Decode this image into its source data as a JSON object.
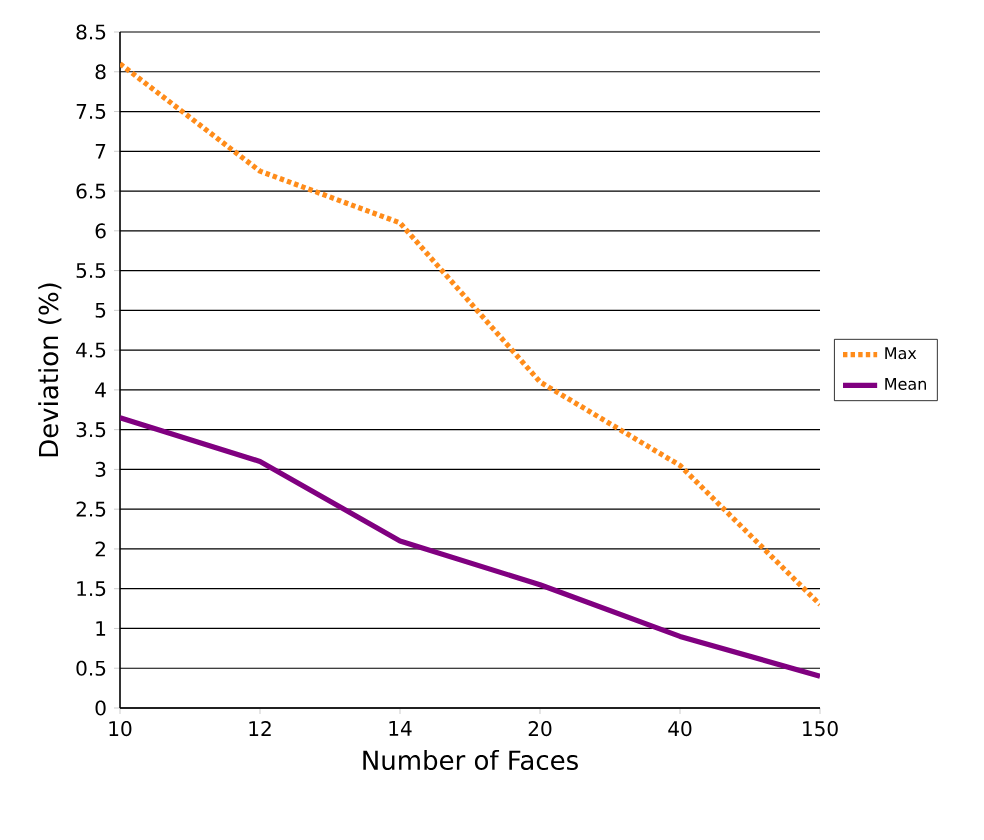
{
  "chart_data": {
    "type": "line",
    "xlabel": "Number of Faces",
    "ylabel": "Deviation (%)",
    "categories": [
      "10",
      "12",
      "14",
      "20",
      "40",
      "150"
    ],
    "series": [
      {
        "name": "Max",
        "color": "#ff8c1a",
        "line_style": "dotted",
        "values": [
          8.1,
          6.75,
          6.1,
          4.1,
          3.05,
          1.3
        ]
      },
      {
        "name": "Mean",
        "color": "#800080",
        "line_style": "solid",
        "values": [
          3.65,
          3.1,
          2.1,
          1.55,
          0.9,
          0.4
        ]
      }
    ],
    "ylim": [
      0,
      8.5
    ],
    "yticks": [
      0,
      0.5,
      1,
      1.5,
      2,
      2.5,
      3,
      3.5,
      4,
      4.5,
      5,
      5.5,
      6,
      6.5,
      7,
      7.5,
      8,
      8.5
    ],
    "grid": "y",
    "legend": "right",
    "marker": "none"
  }
}
